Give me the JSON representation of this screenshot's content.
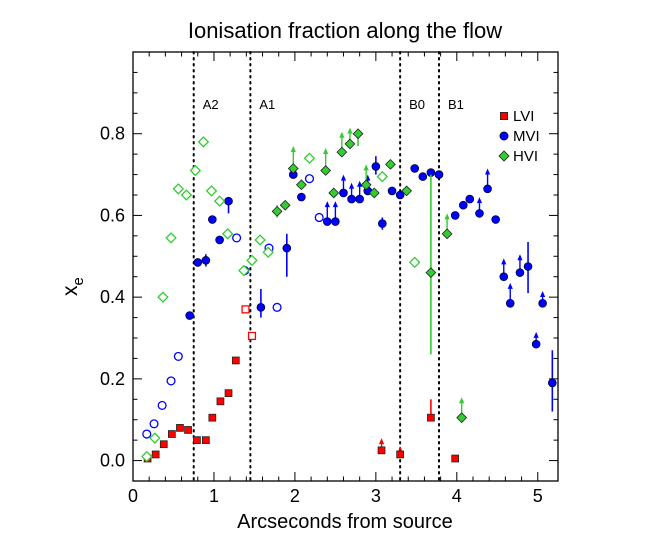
{
  "chart_data": {
    "type": "scatter",
    "title": "Ionisation fraction along the flow",
    "xlabel": "Arcseconds from source",
    "ylabel": "x",
    "ylabel_subscript": "e",
    "xlim": [
      0,
      5.25
    ],
    "ylim": [
      -0.05,
      1.0
    ],
    "x_ticks": [
      0,
      1,
      2,
      3,
      4,
      5
    ],
    "x_tick_labels": [
      "0",
      "1",
      "2",
      "3",
      "4",
      "5"
    ],
    "y_ticks": [
      0.0,
      0.2,
      0.4,
      0.6,
      0.8
    ],
    "y_tick_labels": [
      "0.0",
      "0.2",
      "0.4",
      "0.6",
      "0.8"
    ],
    "legend": {
      "placement": "top-right",
      "entries": [
        {
          "label": "LVI",
          "marker": "square",
          "color": "#ff0000"
        },
        {
          "label": "MVI",
          "marker": "circle",
          "color": "#0000ff"
        },
        {
          "label": "HVI",
          "marker": "diamond",
          "color": "#33cc33"
        }
      ]
    },
    "vlines": [
      {
        "x": 0.75,
        "label": "A2"
      },
      {
        "x": 1.45,
        "label": "A1"
      },
      {
        "x": 3.3,
        "label": "B0"
      },
      {
        "x": 3.78,
        "label": "B1"
      }
    ],
    "series": [
      {
        "name": "LVI",
        "color": "#ff0000",
        "marker": "square",
        "points": [
          {
            "x": 0.18,
            "y": 0.005,
            "filled": true
          },
          {
            "x": 0.28,
            "y": 0.015,
            "filled": true
          },
          {
            "x": 0.38,
            "y": 0.04,
            "filled": true
          },
          {
            "x": 0.48,
            "y": 0.065,
            "filled": true
          },
          {
            "x": 0.58,
            "y": 0.08,
            "filled": true
          },
          {
            "x": 0.68,
            "y": 0.075,
            "filled": true
          },
          {
            "x": 0.79,
            "y": 0.05,
            "filled": true
          },
          {
            "x": 0.9,
            "y": 0.05,
            "filled": true
          },
          {
            "x": 0.98,
            "y": 0.105,
            "filled": true
          },
          {
            "x": 1.08,
            "y": 0.145,
            "filled": true
          },
          {
            "x": 1.18,
            "y": 0.165,
            "filled": true
          },
          {
            "x": 1.27,
            "y": 0.245,
            "filled": true
          },
          {
            "x": 1.39,
            "y": 0.37,
            "filled": false
          },
          {
            "x": 1.47,
            "y": 0.305,
            "filled": false
          },
          {
            "x": 3.07,
            "y": 0.025,
            "filled": true,
            "arrow": 0.05
          },
          {
            "x": 3.3,
            "y": 0.015,
            "filled": true,
            "arrow": 0.03
          },
          {
            "x": 3.68,
            "y": 0.105,
            "filled": true,
            "err": [
              0.1,
              0.15
            ]
          },
          {
            "x": 3.98,
            "y": 0.005,
            "filled": true
          }
        ]
      },
      {
        "name": "MVI",
        "color": "#0000ff",
        "marker": "circle",
        "points": [
          {
            "x": 0.17,
            "y": 0.065,
            "filled": false
          },
          {
            "x": 0.26,
            "y": 0.09,
            "filled": false
          },
          {
            "x": 0.36,
            "y": 0.135,
            "filled": false
          },
          {
            "x": 0.47,
            "y": 0.195,
            "filled": false
          },
          {
            "x": 0.56,
            "y": 0.255,
            "filled": false
          },
          {
            "x": 0.7,
            "y": 0.355,
            "filled": true
          },
          {
            "x": 0.8,
            "y": 0.485,
            "filled": true
          },
          {
            "x": 0.9,
            "y": 0.49,
            "filled": true,
            "err": [
              0.475,
              0.505
            ]
          },
          {
            "x": 0.98,
            "y": 0.59,
            "filled": true
          },
          {
            "x": 1.07,
            "y": 0.54,
            "filled": true
          },
          {
            "x": 1.18,
            "y": 0.635,
            "filled": true,
            "err": [
              0.605,
              0.645
            ]
          },
          {
            "x": 1.28,
            "y": 0.545,
            "filled": false
          },
          {
            "x": 1.38,
            "y": 0.465,
            "filled": false
          },
          {
            "x": 1.58,
            "y": 0.375,
            "filled": true,
            "err": [
              0.35,
              0.42
            ]
          },
          {
            "x": 1.68,
            "y": 0.52,
            "filled": false
          },
          {
            "x": 1.78,
            "y": 0.375,
            "filled": false
          },
          {
            "x": 1.9,
            "y": 0.52,
            "filled": true,
            "err": [
              0.45,
              0.555
            ]
          },
          {
            "x": 1.98,
            "y": 0.7,
            "filled": true
          },
          {
            "x": 2.08,
            "y": 0.645,
            "filled": true
          },
          {
            "x": 2.18,
            "y": 0.69,
            "filled": false
          },
          {
            "x": 2.3,
            "y": 0.595,
            "filled": false
          },
          {
            "x": 2.4,
            "y": 0.585,
            "filled": true,
            "arrow": 0.63
          },
          {
            "x": 2.5,
            "y": 0.585,
            "filled": true,
            "arrow": 0.63
          },
          {
            "x": 2.6,
            "y": 0.655,
            "filled": true,
            "arrow": 0.695
          },
          {
            "x": 2.7,
            "y": 0.64,
            "filled": true,
            "arrow": 0.675
          },
          {
            "x": 2.8,
            "y": 0.64,
            "filled": true,
            "arrow": 0.68
          },
          {
            "x": 2.9,
            "y": 0.66,
            "filled": true,
            "arrow": 0.695
          },
          {
            "x": 3.0,
            "y": 0.72,
            "filled": true,
            "err": [
              0.7,
              0.745
            ]
          },
          {
            "x": 3.08,
            "y": 0.58,
            "filled": true,
            "err": [
              0.565,
              0.595
            ]
          },
          {
            "x": 3.2,
            "y": 0.66,
            "filled": true
          },
          {
            "x": 3.3,
            "y": 0.65,
            "filled": true
          },
          {
            "x": 3.48,
            "y": 0.715,
            "filled": true
          },
          {
            "x": 3.58,
            "y": 0.695,
            "filled": true
          },
          {
            "x": 3.68,
            "y": 0.705,
            "filled": true
          },
          {
            "x": 3.78,
            "y": 0.7,
            "filled": true
          },
          {
            "x": 3.98,
            "y": 0.6,
            "filled": true
          },
          {
            "x": 4.08,
            "y": 0.625,
            "filled": true
          },
          {
            "x": 4.16,
            "y": 0.64,
            "filled": true
          },
          {
            "x": 4.28,
            "y": 0.605,
            "filled": true,
            "arrow": 0.64
          },
          {
            "x": 4.38,
            "y": 0.665,
            "filled": true,
            "arrow": 0.71
          },
          {
            "x": 4.48,
            "y": 0.59,
            "filled": true
          },
          {
            "x": 4.58,
            "y": 0.45,
            "filled": true,
            "arrow": 0.49
          },
          {
            "x": 4.66,
            "y": 0.385,
            "filled": true,
            "arrow": 0.43
          },
          {
            "x": 4.78,
            "y": 0.46,
            "filled": true,
            "arrow": 0.5
          },
          {
            "x": 4.88,
            "y": 0.475,
            "filled": true,
            "err": [
              0.41,
              0.535
            ]
          },
          {
            "x": 4.98,
            "y": 0.285,
            "filled": true,
            "arrow": 0.31
          },
          {
            "x": 5.06,
            "y": 0.385,
            "filled": true,
            "arrow": 0.41
          },
          {
            "x": 5.18,
            "y": 0.19,
            "filled": true,
            "err": [
              0.12,
              0.27
            ]
          }
        ]
      },
      {
        "name": "HVI",
        "color": "#33cc33",
        "marker": "diamond",
        "points": [
          {
            "x": 0.17,
            "y": 0.01,
            "filled": false
          },
          {
            "x": 0.27,
            "y": 0.055,
            "filled": false
          },
          {
            "x": 0.37,
            "y": 0.4,
            "filled": false
          },
          {
            "x": 0.47,
            "y": 0.545,
            "filled": false
          },
          {
            "x": 0.56,
            "y": 0.665,
            "filled": false
          },
          {
            "x": 0.66,
            "y": 0.65,
            "filled": false
          },
          {
            "x": 0.77,
            "y": 0.71,
            "filled": false
          },
          {
            "x": 0.87,
            "y": 0.78,
            "filled": false
          },
          {
            "x": 0.97,
            "y": 0.66,
            "filled": false
          },
          {
            "x": 1.07,
            "y": 0.635,
            "filled": false
          },
          {
            "x": 1.17,
            "y": 0.555,
            "filled": false
          },
          {
            "x": 1.37,
            "y": 0.465,
            "filled": false
          },
          {
            "x": 1.47,
            "y": 0.49,
            "filled": false
          },
          {
            "x": 1.57,
            "y": 0.54,
            "filled": false
          },
          {
            "x": 1.67,
            "y": 0.51,
            "filled": false
          },
          {
            "x": 1.78,
            "y": 0.61,
            "filled": true,
            "err": [
              0.595,
              0.625
            ]
          },
          {
            "x": 1.88,
            "y": 0.625,
            "filled": true
          },
          {
            "x": 1.98,
            "y": 0.715,
            "filled": true,
            "arrow": 0.765
          },
          {
            "x": 2.08,
            "y": 0.675,
            "filled": true
          },
          {
            "x": 2.18,
            "y": 0.74,
            "filled": false
          },
          {
            "x": 2.38,
            "y": 0.71,
            "filled": true,
            "arrow": 0.76
          },
          {
            "x": 2.48,
            "y": 0.655,
            "filled": true
          },
          {
            "x": 2.58,
            "y": 0.755,
            "filled": true,
            "arrow": 0.8
          },
          {
            "x": 2.68,
            "y": 0.775,
            "filled": true,
            "arrow": 0.81
          },
          {
            "x": 2.78,
            "y": 0.8,
            "filled": true,
            "err": [
              0.77,
              0.805
            ]
          },
          {
            "x": 2.88,
            "y": 0.675,
            "filled": true,
            "arrow": 0.72
          },
          {
            "x": 2.98,
            "y": 0.655,
            "filled": true
          },
          {
            "x": 3.08,
            "y": 0.695,
            "filled": false
          },
          {
            "x": 3.18,
            "y": 0.725,
            "filled": true
          },
          {
            "x": 3.38,
            "y": 0.66,
            "filled": true
          },
          {
            "x": 3.48,
            "y": 0.485,
            "filled": false
          },
          {
            "x": 3.68,
            "y": 0.46,
            "filled": true,
            "err": [
              0.26,
              0.7
            ]
          },
          {
            "x": 3.88,
            "y": 0.555,
            "filled": true,
            "arrow": 0.6
          },
          {
            "x": 4.06,
            "y": 0.105,
            "filled": true,
            "arrow": 0.15
          }
        ]
      }
    ]
  }
}
